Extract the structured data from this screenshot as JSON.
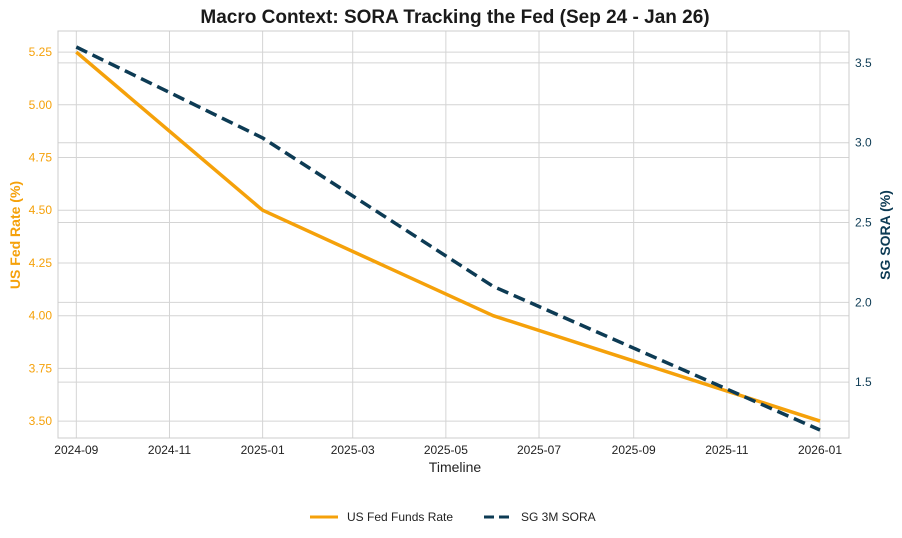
{
  "chart_data": {
    "type": "line",
    "title": "Macro Context: SORA Tracking the Fed (Sep 24 - Jan 26)",
    "xlabel": "Timeline",
    "ylabel_left": "US Fed Rate (%)",
    "ylabel_right": "SG SORA (%)",
    "x_ticks": [
      "2024-09",
      "2024-11",
      "2025-01",
      "2025-03",
      "2025-05",
      "2025-07",
      "2025-09",
      "2025-11",
      "2026-01"
    ],
    "x_range": [
      "2024-08-20",
      "2026-01-20"
    ],
    "ylim_left": [
      3.42,
      5.35
    ],
    "ylim_right": [
      1.15,
      3.7
    ],
    "y_ticks_left": [
      "3.50",
      "3.75",
      "4.00",
      "4.25",
      "4.50",
      "4.75",
      "5.00",
      "5.25"
    ],
    "y_ticks_right": [
      "1.5",
      "2.0",
      "2.5",
      "3.0",
      "3.5"
    ],
    "grid": true,
    "legend_position": "bottom-center",
    "series": [
      {
        "name": "US Fed Funds Rate",
        "axis": "left",
        "color": "#f5a10a",
        "style": "solid",
        "x": [
          "2024-09-01",
          "2025-01-01",
          "2025-06-01",
          "2026-01-01"
        ],
        "values": [
          5.25,
          4.5,
          4.0,
          3.5
        ]
      },
      {
        "name": "SG 3M SORA",
        "axis": "right",
        "color": "#0d3b54",
        "style": "dashed",
        "x": [
          "2024-09-01",
          "2025-01-01",
          "2025-06-01",
          "2026-01-01"
        ],
        "values": [
          3.6,
          3.03,
          2.1,
          1.2
        ]
      }
    ]
  }
}
